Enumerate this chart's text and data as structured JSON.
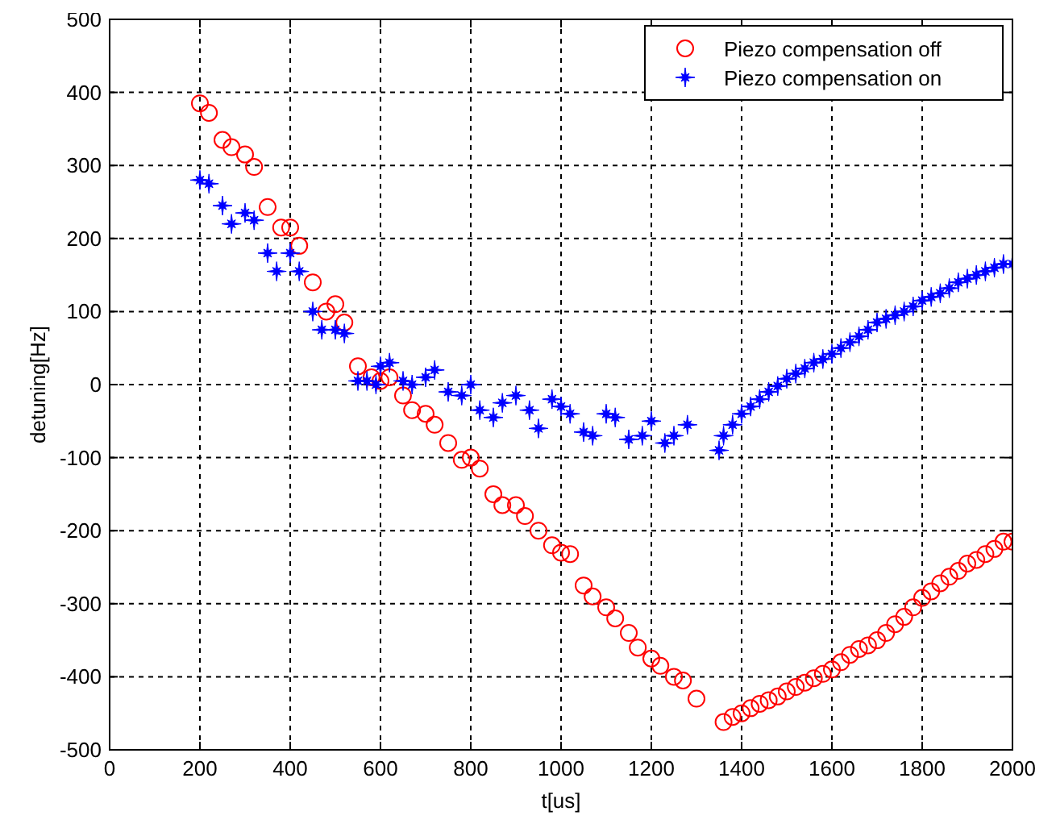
{
  "chart_data": {
    "type": "scatter",
    "xlabel": "t[us]",
    "ylabel": "detuning[Hz]",
    "xlim": [
      0,
      2000
    ],
    "ylim": [
      -500,
      500
    ],
    "xticks": [
      0,
      200,
      400,
      600,
      800,
      1000,
      1200,
      1400,
      1600,
      1800,
      2000
    ],
    "yticks": [
      -500,
      -400,
      -300,
      -200,
      -100,
      0,
      100,
      200,
      300,
      400,
      500
    ],
    "grid": true,
    "legend": "top right",
    "series": [
      {
        "name": "Piezo compensation off",
        "color": "#ff0000",
        "marker": "circle",
        "x": [
          200,
          220,
          250,
          270,
          300,
          320,
          350,
          380,
          400,
          420,
          450,
          480,
          500,
          520,
          550,
          580,
          600,
          620,
          650,
          670,
          700,
          720,
          750,
          780,
          800,
          820,
          850,
          870,
          900,
          920,
          950,
          980,
          1000,
          1020,
          1050,
          1070,
          1100,
          1120,
          1150,
          1170,
          1200,
          1220,
          1250,
          1270,
          1300,
          1360,
          1380,
          1400,
          1420,
          1440,
          1460,
          1480,
          1500,
          1520,
          1540,
          1560,
          1580,
          1600,
          1620,
          1640,
          1660,
          1680,
          1700,
          1720,
          1740,
          1760,
          1780,
          1800,
          1820,
          1840,
          1860,
          1880,
          1900,
          1920,
          1940,
          1960,
          1980,
          2000
        ],
        "values": [
          385,
          372,
          335,
          325,
          315,
          298,
          243,
          215,
          215,
          190,
          140,
          100,
          110,
          85,
          25,
          10,
          5,
          10,
          -15,
          -35,
          -40,
          -55,
          -80,
          -103,
          -100,
          -115,
          -150,
          -165,
          -165,
          -180,
          -200,
          -220,
          -230,
          -232,
          -275,
          -290,
          -305,
          -320,
          -340,
          -360,
          -375,
          -385,
          -400,
          -405,
          -430,
          -462,
          -455,
          -450,
          -443,
          -437,
          -432,
          -427,
          -420,
          -414,
          -408,
          -402,
          -396,
          -390,
          -380,
          -370,
          -362,
          -357,
          -350,
          -340,
          -328,
          -318,
          -305,
          -292,
          -283,
          -272,
          -263,
          -255,
          -245,
          -240,
          -232,
          -225,
          -215,
          -215
        ]
      },
      {
        "name": "Piezo compensation on",
        "color": "#0000ff",
        "marker": "star",
        "x": [
          200,
          220,
          250,
          270,
          300,
          320,
          350,
          370,
          400,
          420,
          450,
          470,
          500,
          520,
          550,
          570,
          590,
          600,
          620,
          650,
          670,
          700,
          720,
          750,
          780,
          800,
          820,
          850,
          870,
          900,
          930,
          950,
          980,
          1000,
          1020,
          1050,
          1070,
          1100,
          1120,
          1150,
          1180,
          1200,
          1230,
          1250,
          1280,
          1350,
          1360,
          1380,
          1400,
          1420,
          1440,
          1460,
          1480,
          1500,
          1520,
          1540,
          1560,
          1580,
          1600,
          1620,
          1640,
          1660,
          1680,
          1700,
          1720,
          1740,
          1760,
          1780,
          1800,
          1820,
          1840,
          1860,
          1880,
          1900,
          1920,
          1940,
          1960,
          1980,
          2000
        ],
        "values": [
          280,
          275,
          245,
          220,
          235,
          225,
          180,
          155,
          180,
          155,
          100,
          75,
          75,
          70,
          5,
          5,
          0,
          25,
          30,
          5,
          0,
          10,
          20,
          -10,
          -15,
          0,
          -35,
          -45,
          -25,
          -15,
          -35,
          -60,
          -20,
          -30,
          -40,
          -65,
          -70,
          -40,
          -45,
          -75,
          -70,
          -50,
          -80,
          -70,
          -55,
          -90,
          -70,
          -55,
          -40,
          -30,
          -20,
          -10,
          -2,
          8,
          15,
          22,
          30,
          35,
          42,
          50,
          58,
          66,
          75,
          85,
          90,
          95,
          100,
          107,
          115,
          120,
          125,
          132,
          140,
          145,
          150,
          155,
          160,
          165,
          165
        ]
      }
    ]
  }
}
